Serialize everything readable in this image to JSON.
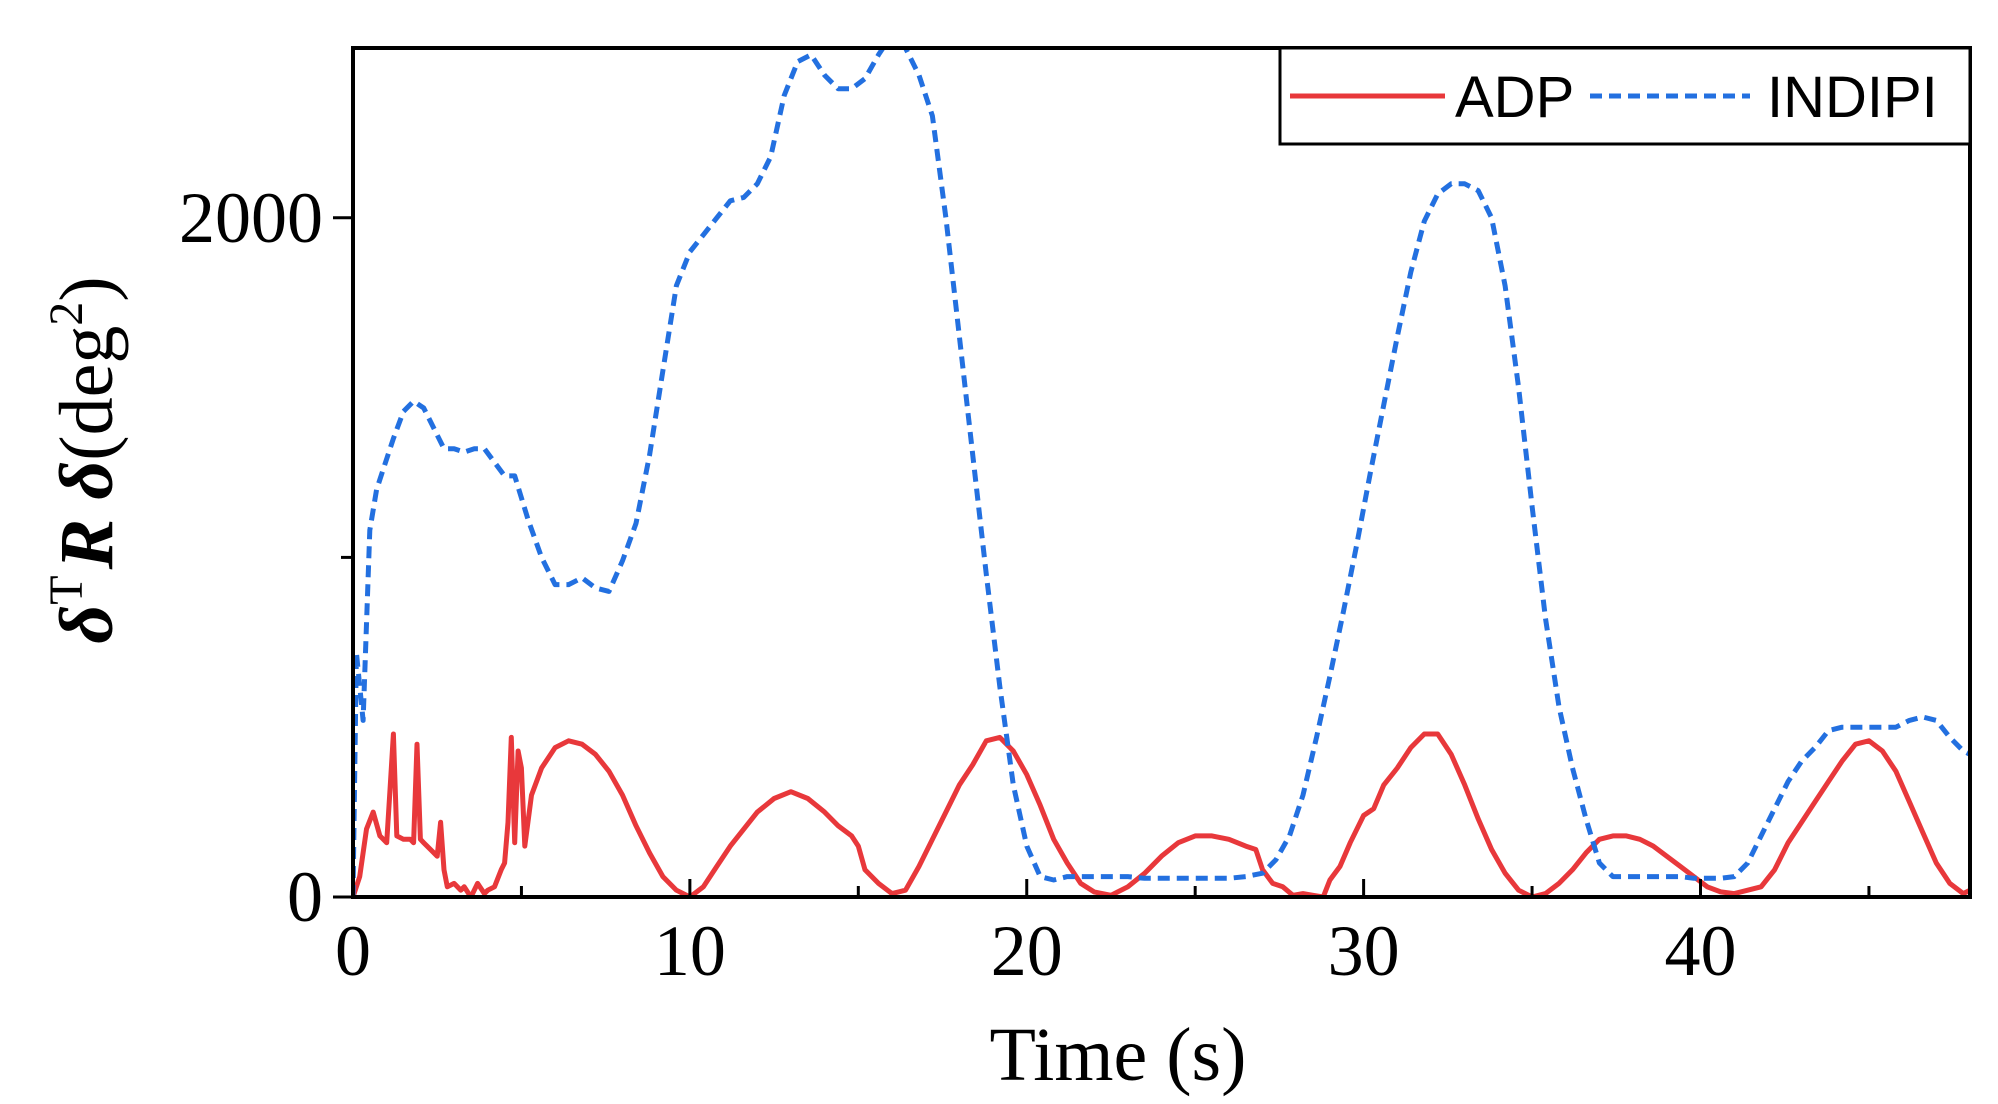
{
  "chart_data": {
    "type": "line",
    "xlabel": "Time (s)",
    "ylabel": {
      "delta": "δ",
      "superscript_T": "T",
      "R": "R",
      "delta2": "δ",
      "unit_open": "(deg",
      "unit_exp": "2",
      "unit_close": ")"
    },
    "xlim": [
      0,
      48
    ],
    "ylim": [
      0,
      2500
    ],
    "xticks": [
      0,
      10,
      20,
      30,
      40
    ],
    "xminorticks": [
      5,
      15,
      25,
      35,
      45
    ],
    "yticks": [
      0,
      2000
    ],
    "yminorticks": [
      1000
    ],
    "legend": {
      "position": "top-right"
    },
    "series": [
      {
        "name": "ADP",
        "color": "#e8383b",
        "style": "solid",
        "x": [
          0,
          0.2,
          0.4,
          0.6,
          0.8,
          1.0,
          1.1,
          1.2,
          1.3,
          1.5,
          1.7,
          1.8,
          1.9,
          2.0,
          2.1,
          2.3,
          2.5,
          2.6,
          2.7,
          2.8,
          3.0,
          3.2,
          3.3,
          3.5,
          3.7,
          3.9,
          4.0,
          4.2,
          4.4,
          4.5,
          4.6,
          4.7,
          4.8,
          4.9,
          5.0,
          5.1,
          5.3,
          5.6,
          6.0,
          6.4,
          6.8,
          7.2,
          7.6,
          8.0,
          8.4,
          8.8,
          9.2,
          9.6,
          10.0,
          10.4,
          10.8,
          11.2,
          11.6,
          12.0,
          12.5,
          13.0,
          13.5,
          14.0,
          14.4,
          14.8,
          15.0,
          15.2,
          15.6,
          16.0,
          16.4,
          16.8,
          17.2,
          17.6,
          18.0,
          18.4,
          18.8,
          19.2,
          19.6,
          20.0,
          20.4,
          20.8,
          21.2,
          21.6,
          22.0,
          22.5,
          23.0,
          23.5,
          24.0,
          24.5,
          25.0,
          25.5,
          26.0,
          26.5,
          26.8,
          27.0,
          27.3,
          27.6,
          27.9,
          28.2,
          28.5,
          28.8,
          29.0,
          29.3,
          29.6,
          30.0,
          30.3,
          30.6,
          31.0,
          31.4,
          31.8,
          32.2,
          32.6,
          33.0,
          33.4,
          33.8,
          34.2,
          34.6,
          35.0,
          35.4,
          35.8,
          36.2,
          36.6,
          37.0,
          37.4,
          37.8,
          38.2,
          38.6,
          39.0,
          39.4,
          39.8,
          40.2,
          40.6,
          41.0,
          41.4,
          41.8,
          42.2,
          42.6,
          43.0,
          43.4,
          43.8,
          44.2,
          44.6,
          45.0,
          45.4,
          45.8,
          46.2,
          46.6,
          47.0,
          47.4,
          47.8,
          48.0
        ],
        "y": [
          0,
          60,
          200,
          250,
          180,
          160,
          320,
          480,
          180,
          170,
          170,
          160,
          450,
          170,
          160,
          140,
          120,
          220,
          80,
          30,
          40,
          20,
          30,
          0,
          40,
          10,
          20,
          30,
          80,
          100,
          220,
          470,
          160,
          430,
          380,
          150,
          300,
          380,
          440,
          460,
          450,
          420,
          370,
          300,
          210,
          130,
          60,
          20,
          0,
          30,
          90,
          150,
          200,
          250,
          290,
          310,
          290,
          250,
          210,
          180,
          150,
          80,
          40,
          10,
          20,
          90,
          170,
          250,
          330,
          390,
          460,
          470,
          430,
          360,
          270,
          170,
          100,
          40,
          15,
          5,
          30,
          70,
          120,
          160,
          180,
          180,
          170,
          150,
          140,
          80,
          40,
          30,
          5,
          10,
          5,
          0,
          50,
          90,
          160,
          240,
          260,
          330,
          380,
          440,
          480,
          480,
          420,
          330,
          230,
          140,
          70,
          20,
          0,
          10,
          40,
          80,
          130,
          170,
          180,
          180,
          170,
          150,
          120,
          90,
          60,
          30,
          15,
          10,
          20,
          30,
          80,
          160,
          220,
          280,
          340,
          400,
          450,
          460,
          430,
          370,
          280,
          190,
          100,
          40,
          10,
          20
        ]
      },
      {
        "name": "INDIPI",
        "color": "#2370e0",
        "style": "dashed",
        "x": [
          0,
          0.1,
          0.3,
          0.5,
          0.7,
          0.9,
          1.2,
          1.5,
          1.8,
          2.1,
          2.4,
          2.7,
          3.0,
          3.3,
          3.6,
          3.9,
          4.2,
          4.5,
          4.8,
          5.2,
          5.6,
          6.0,
          6.4,
          6.8,
          7.2,
          7.6,
          8.0,
          8.4,
          8.8,
          9.2,
          9.6,
          10.0,
          10.4,
          10.8,
          11.2,
          11.6,
          12.0,
          12.4,
          12.8,
          13.2,
          13.6,
          14.0,
          14.4,
          14.8,
          15.2,
          15.6,
          16.0,
          16.4,
          16.8,
          17.2,
          17.6,
          18.0,
          18.4,
          18.8,
          19.2,
          19.6,
          20.0,
          20.4,
          20.8,
          21.2,
          21.6,
          22.0,
          22.5,
          23.0,
          23.5,
          24.0,
          24.5,
          25.0,
          25.5,
          26.0,
          26.5,
          27.0,
          27.4,
          27.8,
          28.2,
          28.6,
          29.0,
          29.4,
          29.8,
          30.2,
          30.6,
          31.0,
          31.4,
          31.8,
          32.2,
          32.6,
          33.0,
          33.4,
          33.8,
          34.2,
          34.6,
          35.0,
          35.4,
          35.8,
          36.2,
          36.6,
          37.0,
          37.4,
          37.8,
          38.2,
          38.6,
          39.0,
          39.4,
          39.8,
          40.2,
          40.6,
          41.0,
          41.4,
          41.8,
          42.2,
          42.6,
          43.0,
          43.4,
          43.8,
          44.2,
          44.6,
          45.0,
          45.4,
          45.8,
          46.2,
          46.6,
          47.0,
          47.4,
          47.8,
          48.0
        ],
        "y": [
          0,
          720,
          520,
          1080,
          1200,
          1260,
          1350,
          1430,
          1460,
          1440,
          1380,
          1320,
          1320,
          1310,
          1320,
          1320,
          1280,
          1240,
          1240,
          1110,
          1000,
          920,
          920,
          940,
          910,
          900,
          990,
          1100,
          1300,
          1550,
          1800,
          1900,
          1950,
          2000,
          2050,
          2060,
          2100,
          2180,
          2360,
          2460,
          2480,
          2420,
          2380,
          2380,
          2410,
          2480,
          2540,
          2500,
          2420,
          2300,
          2000,
          1650,
          1300,
          950,
          620,
          330,
          150,
          60,
          50,
          60,
          60,
          60,
          60,
          60,
          55,
          55,
          55,
          55,
          55,
          55,
          60,
          70,
          110,
          180,
          300,
          470,
          650,
          840,
          1040,
          1250,
          1450,
          1650,
          1840,
          1990,
          2070,
          2100,
          2100,
          2080,
          2000,
          1800,
          1500,
          1150,
          820,
          560,
          380,
          230,
          100,
          60,
          60,
          60,
          60,
          60,
          60,
          55,
          55,
          55,
          60,
          100,
          180,
          260,
          340,
          400,
          440,
          490,
          500,
          500,
          500,
          500,
          500,
          520,
          530,
          520,
          470,
          430,
          420
        ]
      }
    ]
  }
}
